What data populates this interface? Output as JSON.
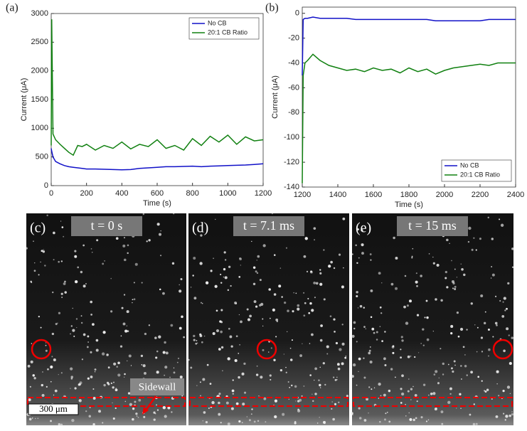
{
  "chart_data": [
    {
      "type": "line",
      "label": "(a)",
      "xlabel": "Time (s)",
      "ylabel": "Current (μA)",
      "legend": "upper right",
      "x": [
        0,
        3,
        10,
        25,
        50,
        75,
        100,
        125,
        150,
        175,
        200,
        250,
        300,
        350,
        400,
        450,
        500,
        550,
        600,
        650,
        700,
        750,
        800,
        850,
        900,
        950,
        1000,
        1050,
        1100,
        1150,
        1200
      ],
      "series": [
        {
          "name": "No CB",
          "color": "#1010c8",
          "values": [
            650,
            600,
            500,
            420,
            380,
            350,
            330,
            320,
            310,
            300,
            290,
            290,
            285,
            280,
            275,
            280,
            300,
            310,
            320,
            330,
            330,
            335,
            340,
            330,
            340,
            345,
            350,
            355,
            360,
            370,
            380
          ]
        },
        {
          "name": "20:1 CB Ratio",
          "color": "#108010",
          "values": [
            700,
            2900,
            900,
            800,
            720,
            650,
            580,
            530,
            700,
            680,
            720,
            620,
            700,
            650,
            760,
            640,
            720,
            680,
            800,
            650,
            700,
            620,
            820,
            700,
            860,
            760,
            880,
            720,
            850,
            780,
            800
          ]
        }
      ],
      "xlim": [
        0,
        1200
      ],
      "xticks": [
        0,
        200,
        400,
        600,
        800,
        1000,
        1200
      ],
      "ylim": [
        0,
        3000
      ],
      "yticks": [
        0,
        500,
        1000,
        1500,
        2000,
        2500,
        3000
      ]
    },
    {
      "type": "line",
      "label": "(b)",
      "xlabel": "Time (s)",
      "ylabel": "Current (μA)",
      "legend": "lower right",
      "x": [
        1200,
        1205,
        1215,
        1230,
        1260,
        1300,
        1350,
        1400,
        1450,
        1500,
        1550,
        1600,
        1650,
        1700,
        1750,
        1800,
        1850,
        1900,
        1950,
        2000,
        2050,
        2100,
        2150,
        2200,
        2250,
        2300,
        2400
      ],
      "series": [
        {
          "name": "No CB",
          "color": "#1010c8",
          "values": [
            -50,
            -5,
            -4,
            -4,
            -3,
            -4,
            -4,
            -4,
            -4,
            -5,
            -5,
            -5,
            -5,
            -5,
            -5,
            -5,
            -5,
            -5,
            -6,
            -6,
            -6,
            -6,
            -6,
            -6,
            -5,
            -5,
            -5
          ]
        },
        {
          "name": "20:1 CB Ratio",
          "color": "#108010",
          "values": [
            -137,
            -50,
            -40,
            -38,
            -33,
            -38,
            -42,
            -44,
            -46,
            -45,
            -47,
            -44,
            -46,
            -45,
            -48,
            -44,
            -47,
            -45,
            -49,
            -46,
            -44,
            -43,
            -42,
            -41,
            -42,
            -40,
            -40
          ]
        }
      ],
      "xlim": [
        1200,
        2400
      ],
      "xticks": [
        1200,
        1400,
        1600,
        1800,
        2000,
        2200,
        2400
      ],
      "ylim": [
        -140,
        5
      ],
      "yticks": [
        -140,
        -120,
        -100,
        -80,
        -60,
        -40,
        -20,
        0
      ]
    }
  ],
  "panels": [
    {
      "label": "(c)",
      "time": "t = 0 s",
      "scale": "300 μm",
      "annotation": "Sidewall"
    },
    {
      "label": "(d)",
      "time": "t = 7.1 ms"
    },
    {
      "label": "(e)",
      "time": "t = 15 ms"
    }
  ]
}
